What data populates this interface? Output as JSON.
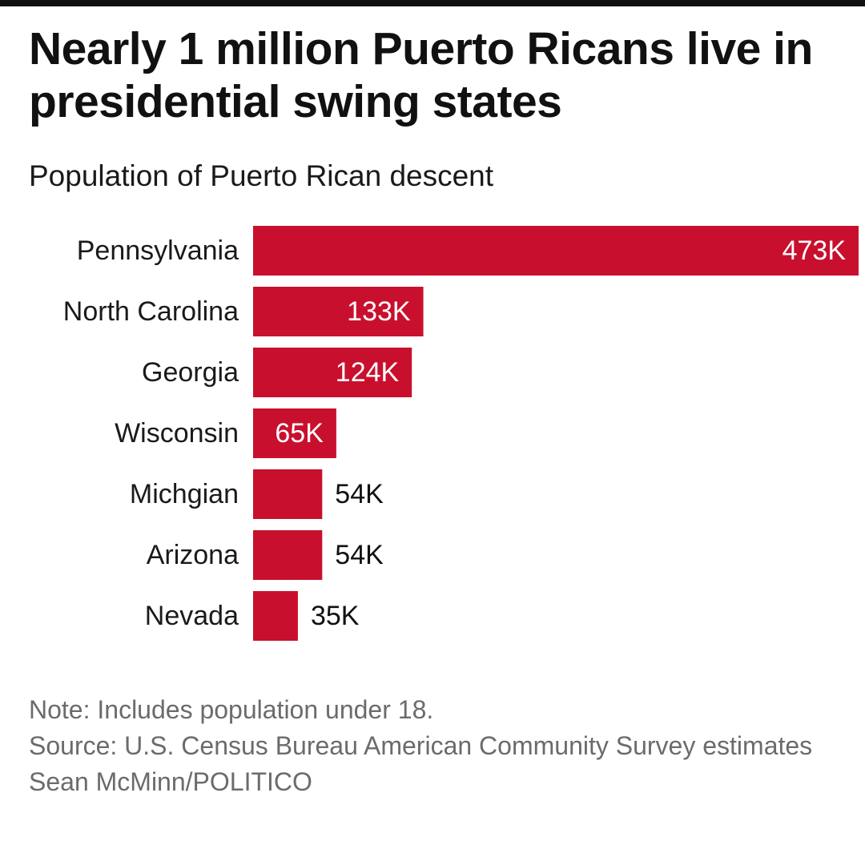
{
  "header": {
    "title": "Nearly 1 million Puerto Ricans live in presidential swing states",
    "subtitle": "Population of Puerto Rican descent"
  },
  "chart_data": {
    "type": "bar",
    "orientation": "horizontal",
    "categories": [
      "Pennsylvania",
      "North Carolina",
      "Georgia",
      "Wisconsin",
      "Michgian",
      "Arizona",
      "Nevada"
    ],
    "values": [
      473,
      133,
      124,
      65,
      54,
      54,
      35
    ],
    "value_labels": [
      "473K",
      "133K",
      "124K",
      "65K",
      "54K",
      "54K",
      "35K"
    ],
    "unit": "K",
    "xlim": [
      0,
      473
    ],
    "bar_color": "#c8102e",
    "grid": false,
    "legend": false
  },
  "footer": {
    "note": "Note: Includes population under 18.",
    "source": "Source: U.S. Census Bureau American Community Survey estimates",
    "credit": "Sean McMinn/POLITICO"
  }
}
